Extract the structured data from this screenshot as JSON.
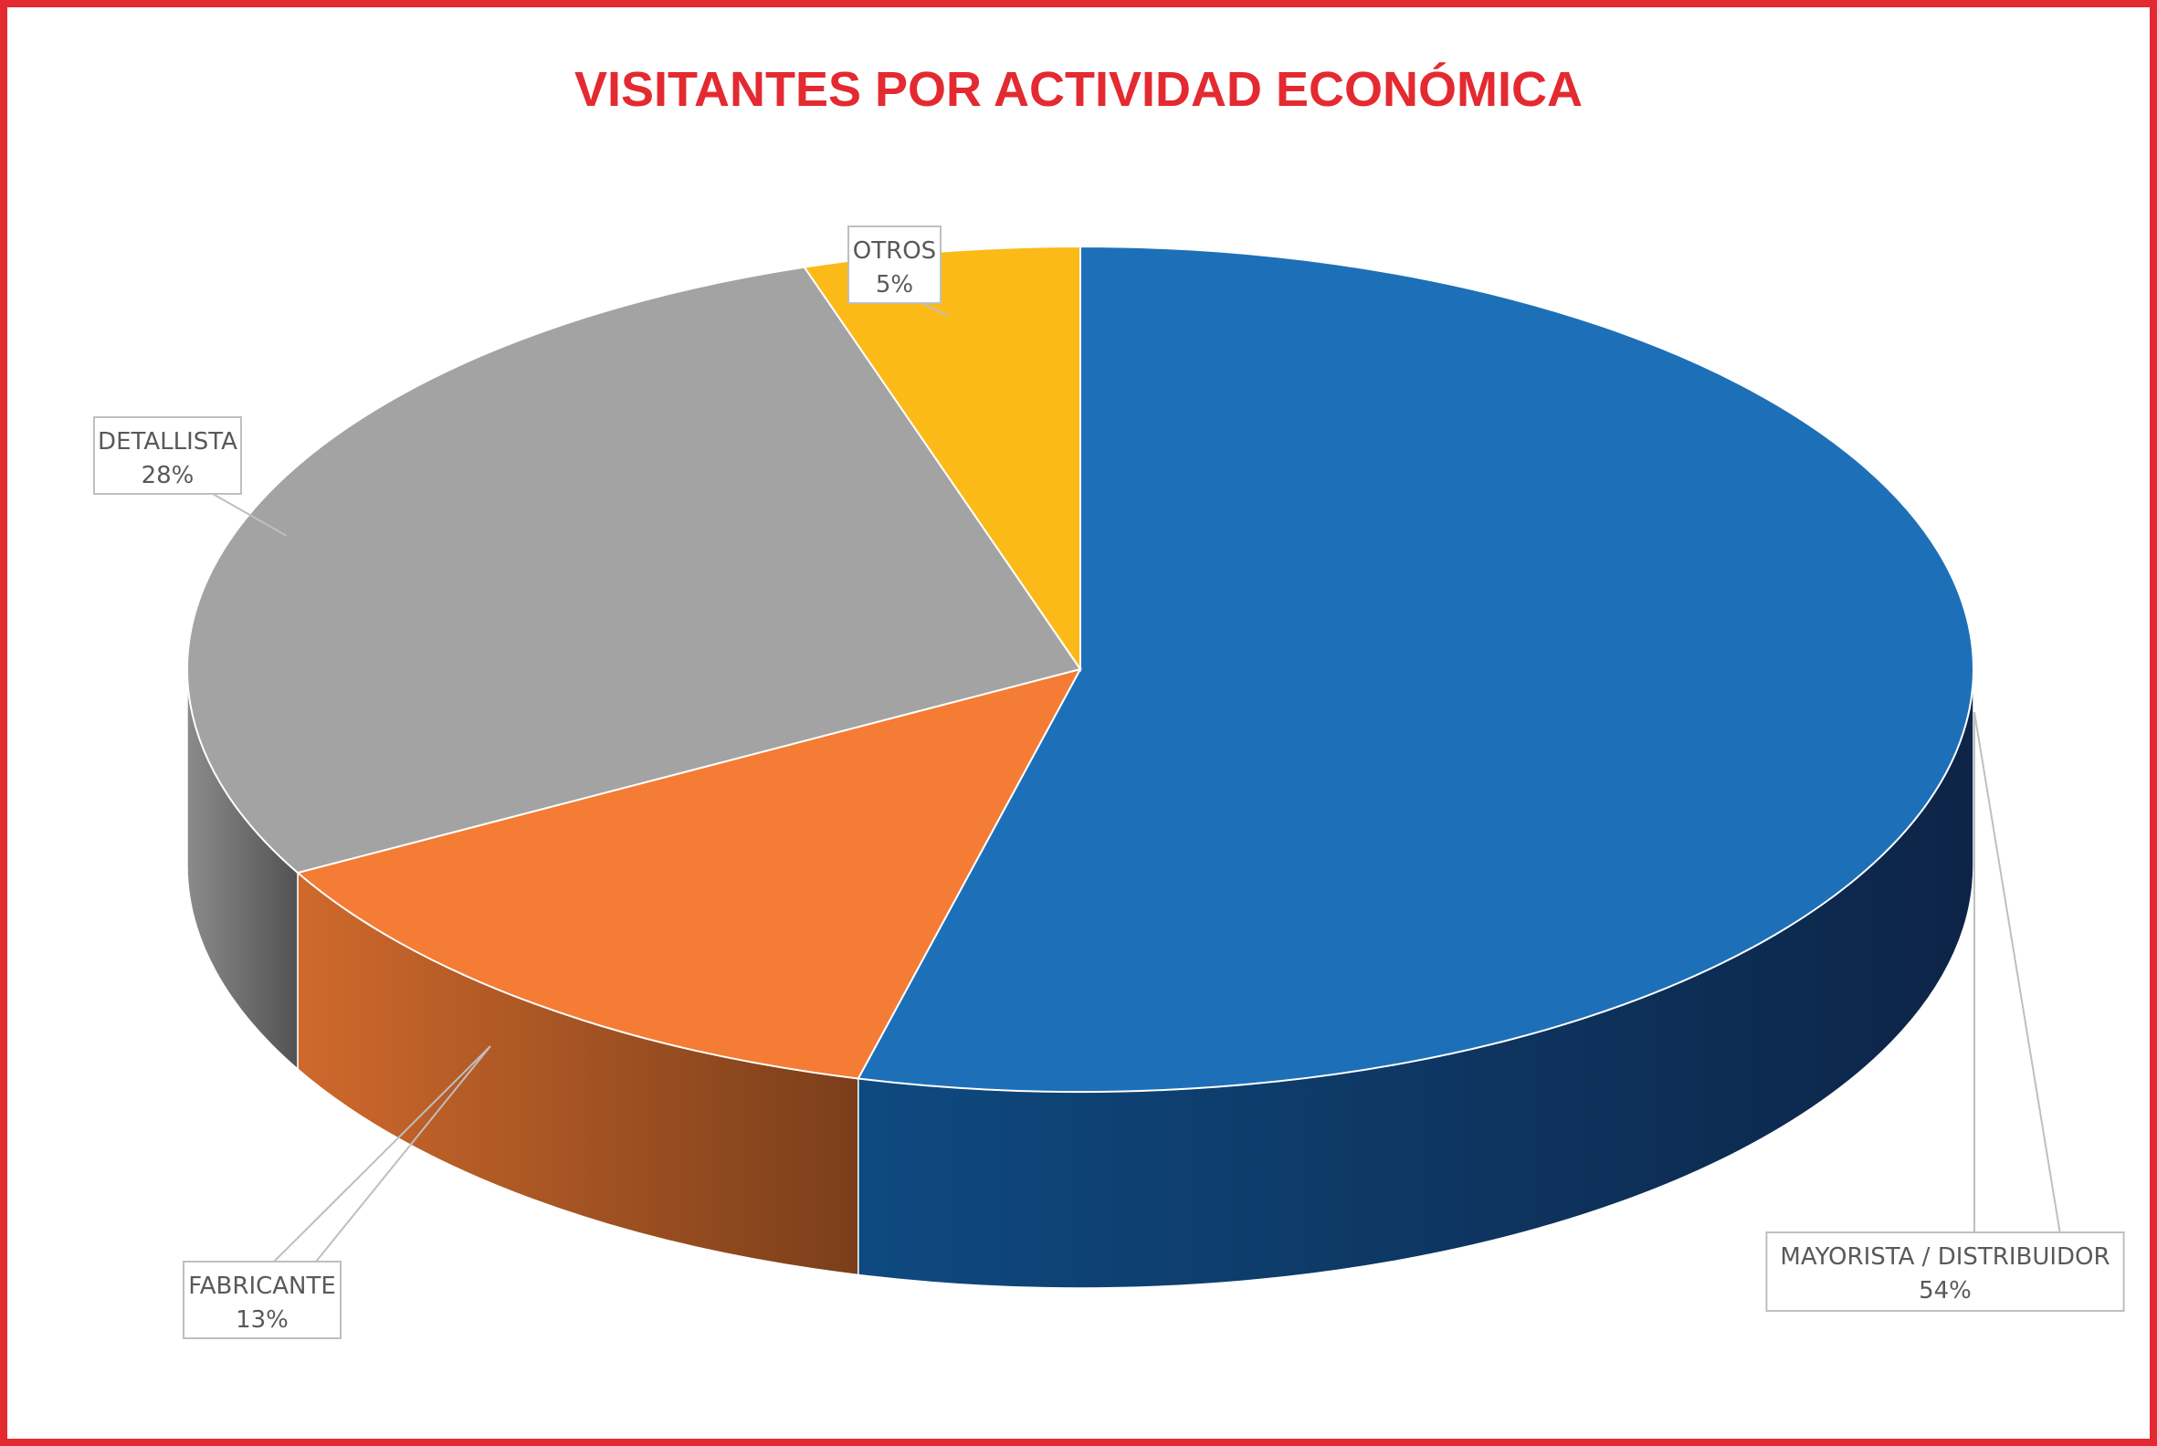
{
  "chart_data": {
    "type": "pie",
    "title": "VISITANTES POR ACTIVIDAD ECONÓMICA",
    "categories": [
      "MAYORISTA / DISTRIBUIDOR",
      "FABRICANTE",
      "DETALLISTA",
      "OTROS"
    ],
    "values": [
      54,
      13,
      28,
      5
    ],
    "value_labels": [
      "54%",
      "13%",
      "28%",
      "5%"
    ],
    "colors": [
      "#1d70b8",
      "#f47c34",
      "#a3a3a3",
      "#fbba17"
    ],
    "legend": "none",
    "style": "3d"
  },
  "colors": {
    "title": "#e42a31",
    "border": "#e42a31"
  }
}
